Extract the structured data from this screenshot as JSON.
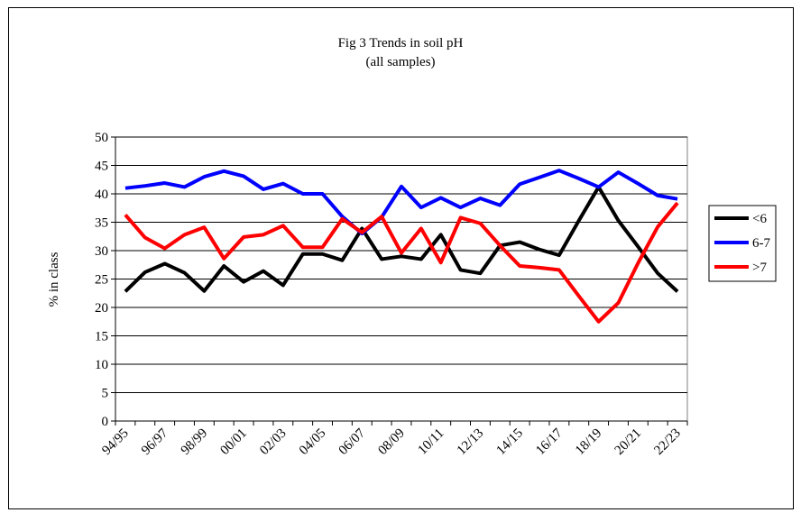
{
  "chart_data": {
    "type": "line",
    "title": "Fig 3 Trends in soil pH",
    "subtitle": "(all samples)",
    "y_label": "% in class",
    "categories": [
      "94/95",
      null,
      "96/97",
      null,
      "98/99",
      null,
      "00/01",
      null,
      "02/03",
      null,
      "04/05",
      null,
      "06/07",
      null,
      "08/09",
      null,
      "10/11",
      null,
      "12/13",
      null,
      "14/15",
      null,
      "16/17",
      null,
      "18/19",
      null,
      "20/21",
      null,
      "22/23"
    ],
    "series": [
      {
        "name": "<6",
        "color": "#000000",
        "values": [
          22.8,
          26.2,
          27.7,
          26.1,
          22.9,
          27.3,
          24.5,
          26.4,
          23.9,
          29.4,
          29.4,
          28.3,
          33.9,
          28.5,
          29.0,
          28.5,
          32.8,
          26.6,
          26.0,
          30.9,
          31.5,
          30.2,
          29.2,
          35.3,
          41.2,
          35.3,
          30.7,
          26.0,
          22.8
        ]
      },
      {
        "name": "6-7",
        "color": "#0000ff",
        "values": [
          41.0,
          41.4,
          41.9,
          41.2,
          43.0,
          44.0,
          43.1,
          40.8,
          41.8,
          40.0,
          40.0,
          36.0,
          33.0,
          35.9,
          41.3,
          37.6,
          39.3,
          37.6,
          39.2,
          38.0,
          41.7,
          42.9,
          44.1,
          42.7,
          41.2,
          43.8,
          41.8,
          39.7,
          39.1
        ]
      },
      {
        "name": ">7",
        "color": "#ff0000",
        "values": [
          36.3,
          32.3,
          30.4,
          32.8,
          34.1,
          28.6,
          32.4,
          32.8,
          34.4,
          30.6,
          30.6,
          35.6,
          33.2,
          36.0,
          29.6,
          33.9,
          27.9,
          35.8,
          34.8,
          30.9,
          27.3,
          27.0,
          26.6,
          22.0,
          17.5,
          20.8,
          27.8,
          34.2,
          38.4
        ]
      }
    ],
    "ylim": [
      0,
      50
    ],
    "yticks": [
      0,
      5,
      10,
      15,
      20,
      25,
      30,
      35,
      40,
      45,
      50
    ],
    "grid": true,
    "legend": "right"
  }
}
